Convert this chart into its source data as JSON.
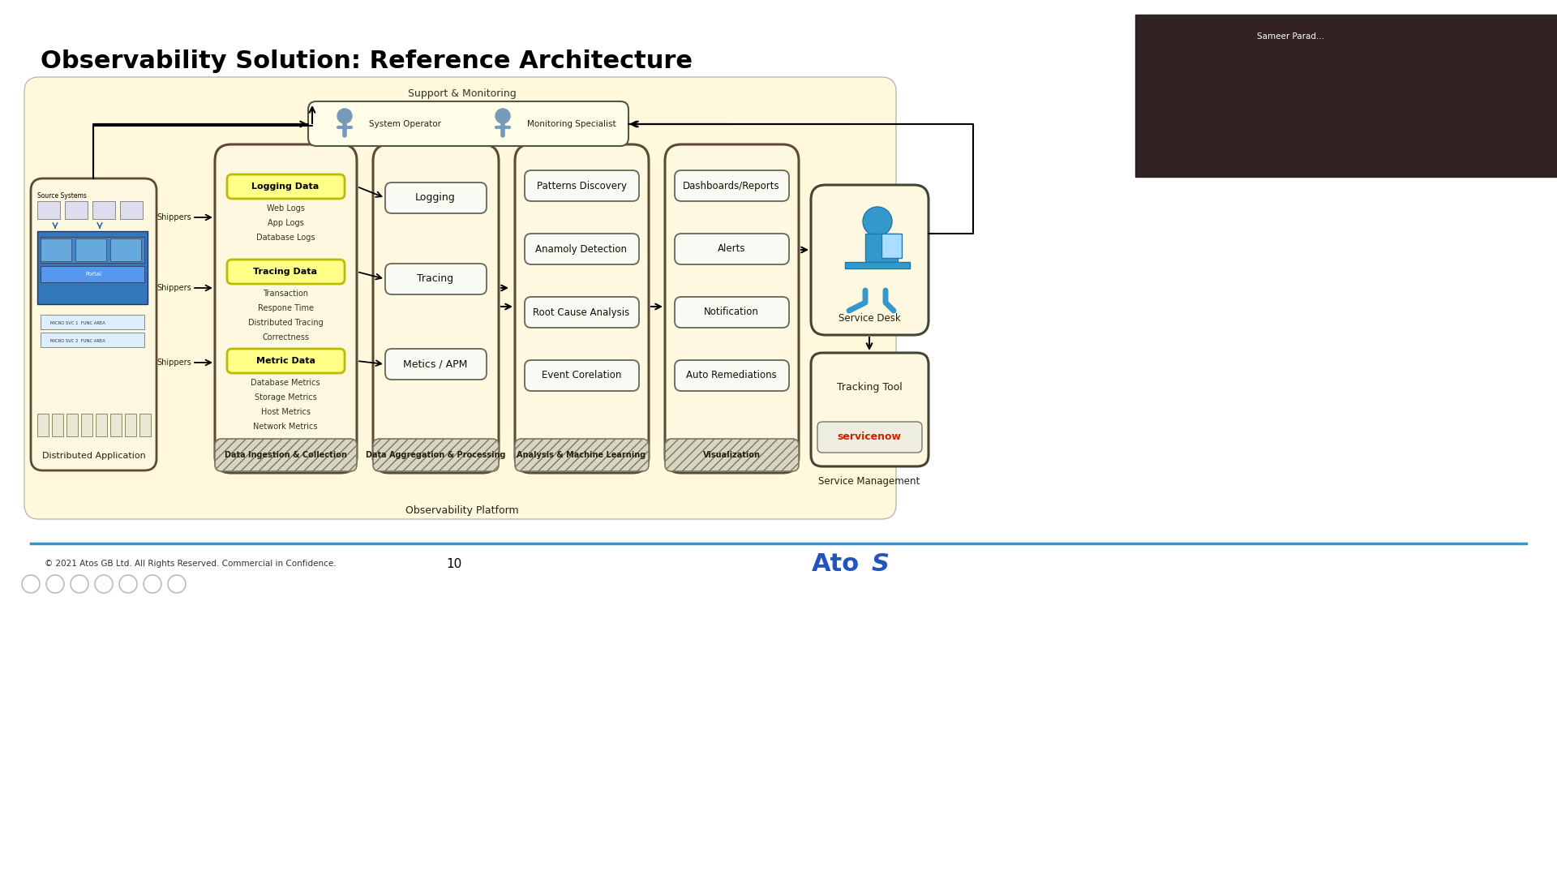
{
  "title": "Observability Solution: Reference Architecture",
  "title_fontsize": 22,
  "title_fontweight": "bold",
  "slide_bg": "#FFFFFF",
  "diagram_bg": "#FFF8DC",
  "box_edge": "#5C4A32",
  "yellow_fill": "#FFFF88",
  "yellow_edge": "#BBBB00",
  "light_fill": "#FAFAF5",
  "footer_text": "© 2021 Atos GB Ltd. All Rights Reserved. Commercial in Confidence.",
  "page_num": "10",
  "support_label": "Support & Monitoring",
  "operator_label": "System Operator",
  "monitoring_label": "Monitoring Specialist",
  "dist_app_label": "Distributed Application",
  "obs_platform_label": "Observability Platform",
  "data_types": [
    "Logging Data",
    "Tracing Data",
    "Metric Data"
  ],
  "logging_items": [
    "Web Logs",
    "App Logs",
    "Database Logs"
  ],
  "tracing_items": [
    "Transaction",
    "Respone Time",
    "Distributed Tracing",
    "Correctness"
  ],
  "metric_items": [
    "Database Metrics",
    "Storage Metrics",
    "Host Metrics",
    "Network Metrics"
  ],
  "aggregation_boxes": [
    "Logging",
    "Tracing",
    "Metics / APM"
  ],
  "analysis_boxes": [
    "Patterns Discovery",
    "Anamoly Detection",
    "Root Cause Analysis",
    "Event Corelation"
  ],
  "viz_boxes": [
    "Dashboards/Reports",
    "Alerts",
    "Notification",
    "Auto Remediations"
  ],
  "section_labels": [
    "Data Ingestion & Collection",
    "Data Aggregation & Processing",
    "Analysis & Machine Learning",
    "Visualization"
  ],
  "service_desk_label": "Service Desk",
  "service_mgmt_label": "Service Management",
  "tracking_tool_label": "Tracking Tool",
  "servicenow_label": "servicenow",
  "atos_logo": "AtoS"
}
